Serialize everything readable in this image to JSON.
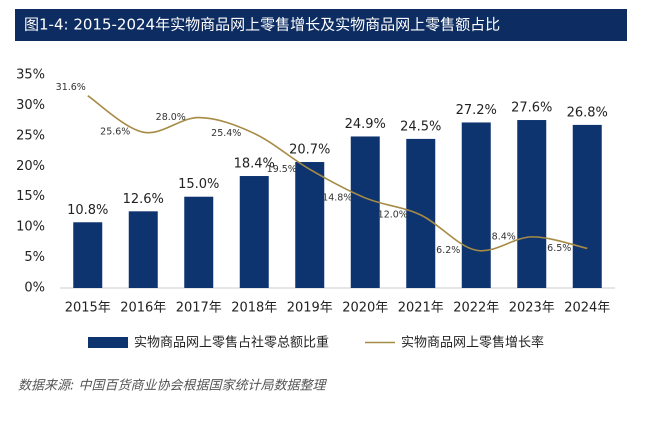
{
  "chart_data": {
    "type": "bar-line",
    "title": "图1-4: 2015-2024年实物商品网上零售增长及实物商品网上零售额占比",
    "categories": [
      "2015年",
      "2016年",
      "2017年",
      "2018年",
      "2019年",
      "2020年",
      "2021年",
      "2022年",
      "2023年",
      "2024年"
    ],
    "series": [
      {
        "name": "实物商品网上零售占社零总额比重",
        "type": "bar",
        "color": "#0e3470",
        "values": [
          10.8,
          12.6,
          15.0,
          18.4,
          20.7,
          24.9,
          24.5,
          27.2,
          27.6,
          26.8
        ],
        "value_labels": [
          "10.8%",
          "12.6%",
          "15.0%",
          "18.4%",
          "20.7%",
          "24.9%",
          "24.5%",
          "27.2%",
          "27.6%",
          "26.8%"
        ]
      },
      {
        "name": "实物商品网上零售增长率",
        "type": "line",
        "color": "#a68b45",
        "values": [
          31.6,
          25.6,
          28.0,
          25.4,
          19.5,
          14.8,
          12.0,
          6.2,
          8.4,
          6.5
        ],
        "value_labels": [
          "31.6%",
          "25.6%",
          "28.0%",
          "25.4%",
          "19.5%",
          "14.8%",
          "12.0%",
          "6.2%",
          "8.4%",
          "6.5%"
        ]
      }
    ],
    "ylim": [
      0,
      35
    ],
    "yticks": [
      {
        "value": 0,
        "label": "0%"
      },
      {
        "value": 5,
        "label": "5%"
      },
      {
        "value": 10,
        "label": "10%"
      },
      {
        "value": 15,
        "label": "15%"
      },
      {
        "value": 20,
        "label": "20%"
      },
      {
        "value": 25,
        "label": "25%"
      },
      {
        "value": 30,
        "label": "30%"
      },
      {
        "value": 35,
        "label": "35%"
      }
    ],
    "grid": false,
    "legend": "bottom",
    "source": "数据来源: 中国百货商业协会根据国家统计局数据整理"
  }
}
